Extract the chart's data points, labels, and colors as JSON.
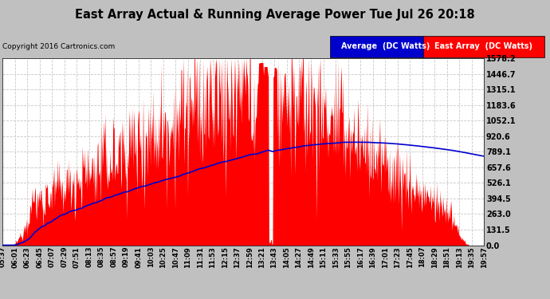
{
  "title": "East Array Actual & Running Average Power Tue Jul 26 20:18",
  "copyright": "Copyright 2016 Cartronics.com",
  "legend_avg": "Average  (DC Watts)",
  "legend_east": "East Array  (DC Watts)",
  "ymax": 1578.2,
  "ymin": 0.0,
  "yticks": [
    0.0,
    131.5,
    263.0,
    394.5,
    526.1,
    657.6,
    789.1,
    920.6,
    1052.1,
    1183.6,
    1315.1,
    1446.7,
    1578.2
  ],
  "ytick_labels": [
    "0.0",
    "131.5",
    "263.0",
    "394.5",
    "526.1",
    "657.6",
    "789.1",
    "920.6",
    "1052.1",
    "1183.6",
    "1315.1",
    "1446.7",
    "1578.2"
  ],
  "xtick_labels": [
    "05:37",
    "06:01",
    "06:23",
    "06:45",
    "07:07",
    "07:29",
    "07:51",
    "08:13",
    "08:35",
    "08:57",
    "09:19",
    "09:41",
    "10:03",
    "10:25",
    "10:47",
    "11:09",
    "11:31",
    "11:53",
    "12:15",
    "12:37",
    "12:59",
    "13:21",
    "13:43",
    "14:05",
    "14:27",
    "14:49",
    "15:11",
    "15:33",
    "15:55",
    "16:17",
    "16:39",
    "17:01",
    "17:23",
    "17:45",
    "18:07",
    "18:29",
    "18:51",
    "19:13",
    "19:35",
    "19:57"
  ],
  "bg_color": "#c0c0c0",
  "plot_bg_color": "#ffffff",
  "grid_color": "#c8c8c8",
  "east_array_color": "#ff0000",
  "avg_color": "#0000cd",
  "title_bg": "#ffffff"
}
